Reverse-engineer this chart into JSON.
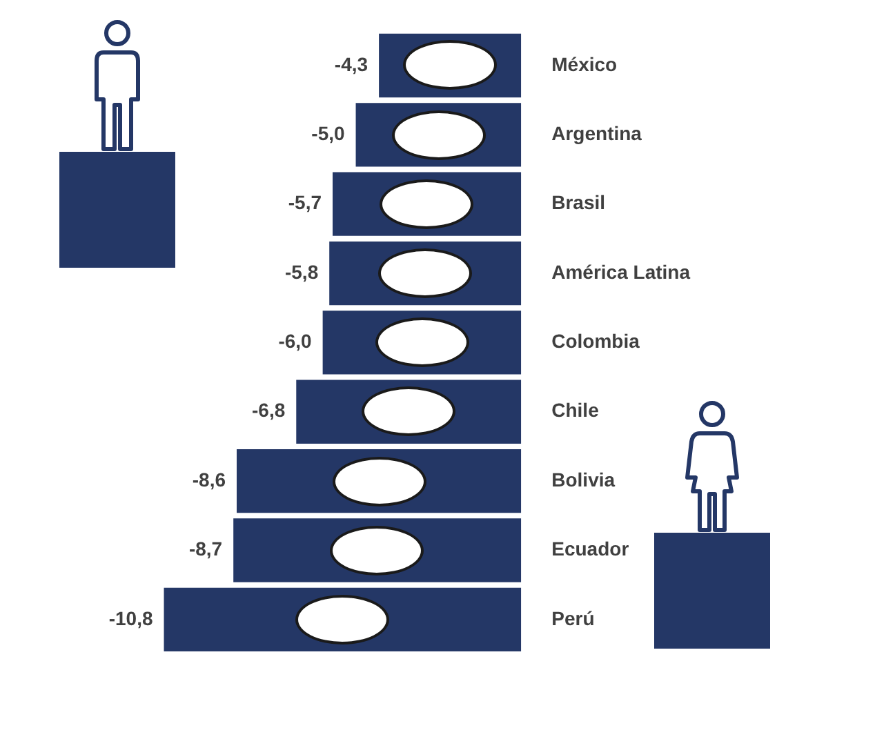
{
  "chart_data": {
    "type": "bar",
    "orientation": "horizontal",
    "categories": [
      "México",
      "Argentina",
      "Brasil",
      "América Latina",
      "Colombia",
      "Chile",
      "Bolivia",
      "Ecuador",
      "Perú"
    ],
    "values": [
      -4.3,
      -5.0,
      -5.7,
      -5.8,
      -6.0,
      -6.8,
      -8.6,
      -8.7,
      -10.8
    ],
    "value_labels": [
      "-4,3",
      "-5,0",
      "-5,7",
      "-5,8",
      "-6,0",
      "-6,8",
      "-8,6",
      "-8,7",
      "-10,8"
    ],
    "color": "#243766",
    "tick_labels": "y",
    "grid": false,
    "legend": false
  }
}
